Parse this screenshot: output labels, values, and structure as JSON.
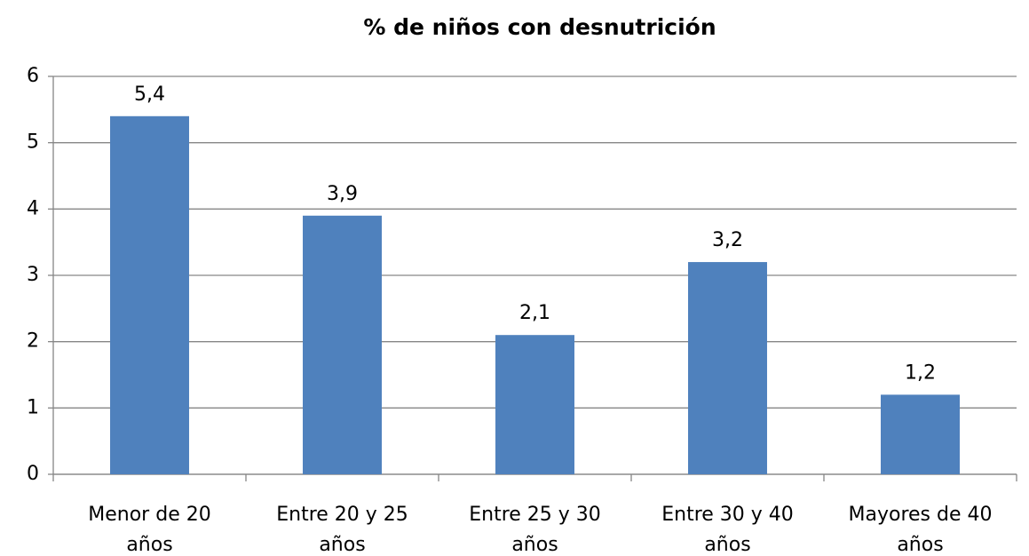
{
  "chart_data": {
    "type": "bar",
    "title": "% de niños con desnutrición",
    "categories": [
      "Menor de 20 años",
      "Entre 20 y 25 años",
      "Entre 25 y 30 años",
      "Entre 30 y 40 años",
      "Mayores de 40 años"
    ],
    "values": [
      5.4,
      3.9,
      2.1,
      3.2,
      1.2
    ],
    "value_labels": [
      "5,4",
      "3,9",
      "2,1",
      "3,2",
      "1,2"
    ],
    "color": "#4f81bd",
    "ylim": [
      0,
      6
    ],
    "yticks": [
      0,
      1,
      2,
      3,
      4,
      5,
      6
    ],
    "grid": true
  }
}
